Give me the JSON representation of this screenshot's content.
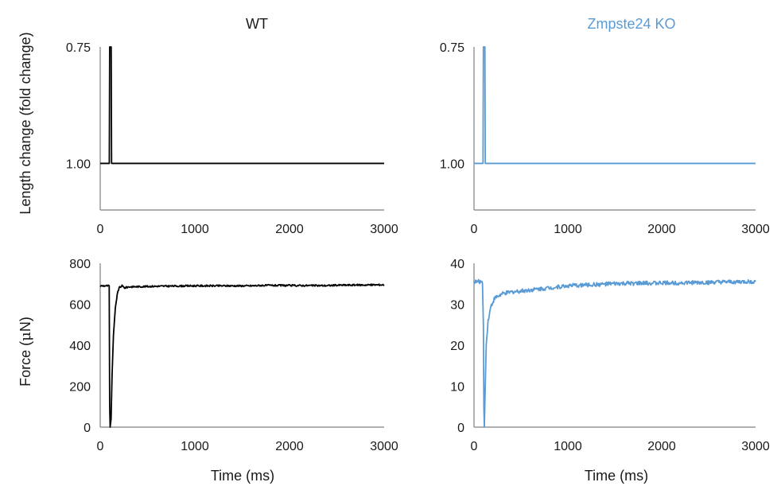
{
  "titles": {
    "left": "WT",
    "right": "Zmpste24 KO"
  },
  "axis_labels": {
    "length": "Length change (fold change)",
    "force_prefix": "Force (",
    "force_mu": "μ",
    "force_suffix": "N)",
    "time_left": "Time (ms)",
    "time_right": "Time (ms)"
  },
  "colors": {
    "wt": "#000000",
    "ko": "#5b9bd5",
    "axis": "#808080",
    "text": "#1a1a1a"
  },
  "chart_data": [
    {
      "type": "line",
      "title": "WT",
      "ylabel": "Length change (fold change)",
      "xlim": [
        0,
        3000
      ],
      "ylim": [
        1.1,
        0.75
      ],
      "x_ticks": [
        "0",
        "1000",
        "2000",
        "3000"
      ],
      "y_ticks": [
        {
          "value": 0.75,
          "label": "0.75"
        },
        {
          "value": 1.0,
          "label": "1.00"
        }
      ],
      "series": [
        {
          "color": "#000000",
          "x": [
            0,
            96,
            100,
            104,
            116,
            120,
            124,
            3000
          ],
          "y": [
            1.0,
            1.0,
            0.75,
            0.75,
            0.75,
            1.0,
            1.0,
            1.0
          ]
        }
      ]
    },
    {
      "type": "line",
      "title": "Zmpste24 KO",
      "ylabel": "Length change (fold change)",
      "xlim": [
        0,
        3000
      ],
      "ylim": [
        1.1,
        0.75
      ],
      "x_ticks": [
        "0",
        "1000",
        "2000",
        "3000"
      ],
      "y_ticks": [
        {
          "value": 0.75,
          "label": "0.75"
        },
        {
          "value": 1.0,
          "label": "1.00"
        }
      ],
      "series": [
        {
          "color": "#5b9bd5",
          "x": [
            0,
            96,
            100,
            104,
            116,
            120,
            124,
            3000
          ],
          "y": [
            1.0,
            1.0,
            0.75,
            0.75,
            0.75,
            1.0,
            1.0,
            1.0
          ]
        }
      ]
    },
    {
      "type": "line",
      "title": "",
      "ylabel": "Force (μN)",
      "xlabel": "Time (ms)",
      "xlim": [
        0,
        3000
      ],
      "ylim": [
        0,
        800
      ],
      "x_ticks": [
        "0",
        "1000",
        "2000",
        "3000"
      ],
      "y_ticks": [
        {
          "value": 0,
          "label": "0"
        },
        {
          "value": 200,
          "label": "200"
        },
        {
          "value": 400,
          "label": "400"
        },
        {
          "value": 600,
          "label": "600"
        },
        {
          "value": 800,
          "label": "800"
        }
      ],
      "series": [
        {
          "color": "#000000",
          "noise": 4,
          "x": [
            0,
            95,
            100,
            105,
            115,
            125,
            140,
            160,
            180,
            200,
            230,
            260,
            300,
            400,
            600,
            1000,
            1600,
            1700,
            2400,
            2500,
            3000
          ],
          "y": [
            690,
            690,
            100,
            0,
            40,
            250,
            450,
            580,
            650,
            680,
            690,
            680,
            685,
            686,
            688,
            690,
            690,
            692,
            691,
            693,
            695
          ]
        }
      ]
    },
    {
      "type": "line",
      "title": "",
      "ylabel": "",
      "xlabel": "Time (ms)",
      "xlim": [
        0,
        3000
      ],
      "ylim": [
        0,
        40
      ],
      "x_ticks": [
        "0",
        "1000",
        "2000",
        "3000"
      ],
      "y_ticks": [
        {
          "value": 0,
          "label": "0"
        },
        {
          "value": 10,
          "label": "10"
        },
        {
          "value": 20,
          "label": "20"
        },
        {
          "value": 30,
          "label": "30"
        },
        {
          "value": 40,
          "label": "40"
        }
      ],
      "series": [
        {
          "color": "#5b9bd5",
          "noise": 0.5,
          "x": [
            0,
            90,
            100,
            105,
            110,
            120,
            130,
            150,
            180,
            220,
            300,
            400,
            600,
            800,
            1000,
            1500,
            2000,
            2500,
            3000
          ],
          "y": [
            35.5,
            35.5,
            25,
            5,
            0,
            10,
            20,
            26,
            29.5,
            31.5,
            32.5,
            33,
            33.5,
            34,
            34.5,
            35,
            35.2,
            35.3,
            35.5
          ]
        }
      ]
    }
  ]
}
